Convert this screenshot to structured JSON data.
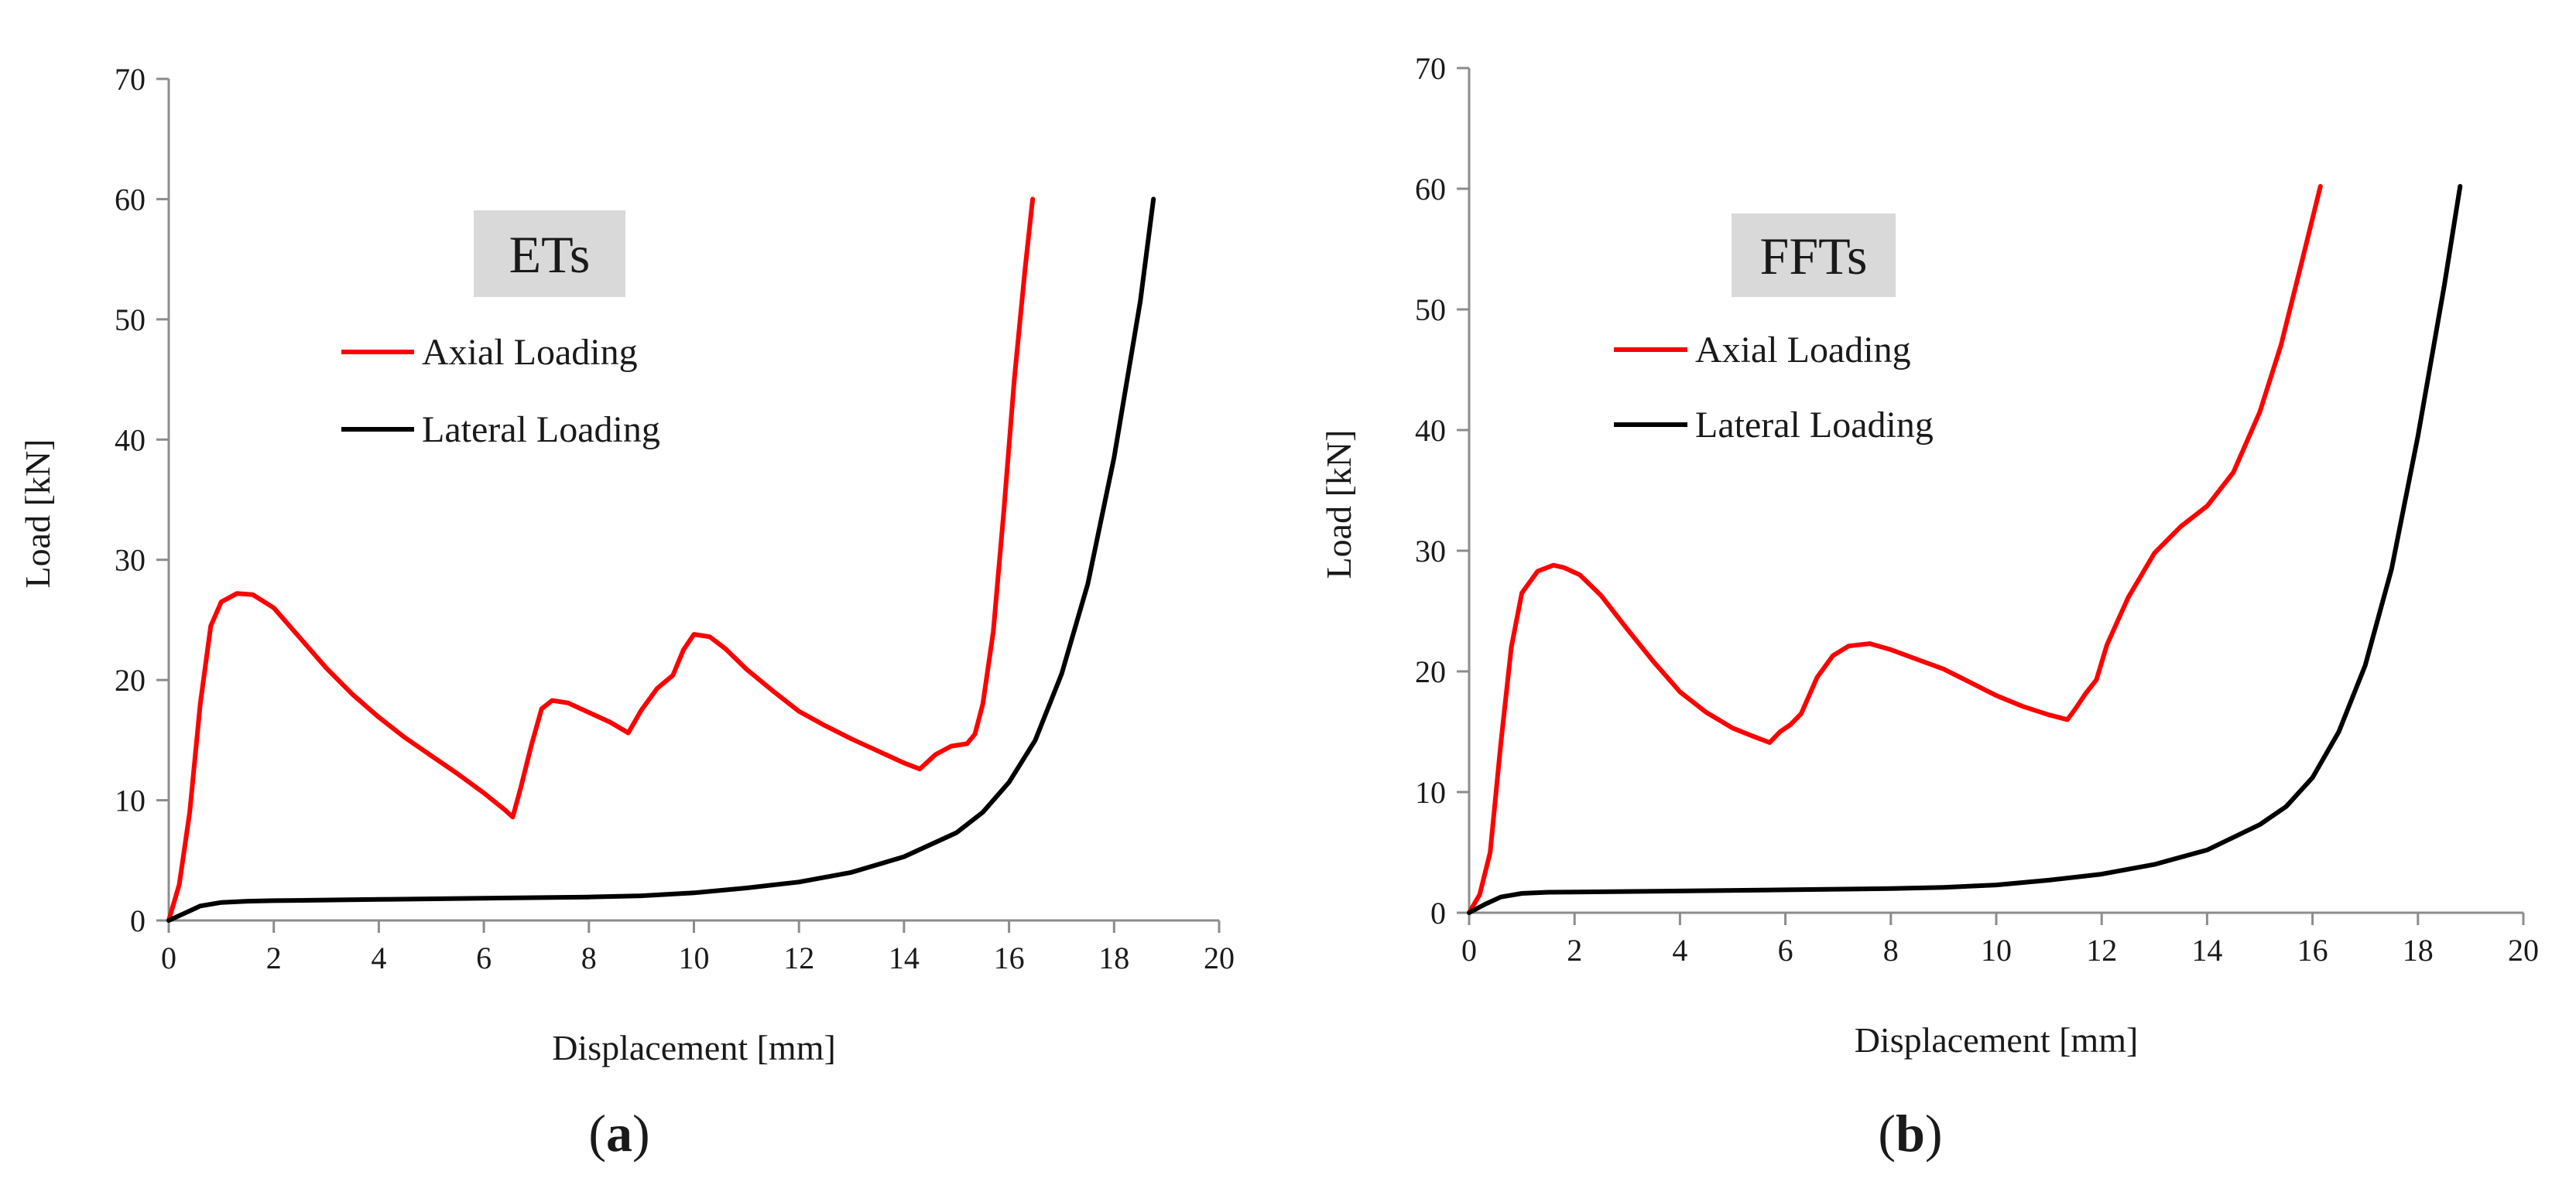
{
  "chart_data": [
    {
      "type": "line",
      "panel_label": "a",
      "caption_open": "(",
      "caption_close": ")",
      "title": "ETs",
      "xlabel": "Displacement [mm]",
      "ylabel": "Load [kN]",
      "xlim": [
        0,
        20
      ],
      "ylim": [
        0,
        70
      ],
      "xticks": [
        0,
        2,
        4,
        6,
        8,
        10,
        12,
        14,
        16,
        18,
        20
      ],
      "yticks": [
        0,
        10,
        20,
        30,
        40,
        50,
        60,
        70
      ],
      "grid": false,
      "legend_position": "upper-left, below title",
      "series": [
        {
          "name": "Axial Loading",
          "color": "#ff0000",
          "x": [
            0,
            0.2,
            0.4,
            0.6,
            0.8,
            1.0,
            1.3,
            1.6,
            2.0,
            2.5,
            3.0,
            3.5,
            4.0,
            4.5,
            5.0,
            5.5,
            6.0,
            6.4,
            6.55,
            6.7,
            6.9,
            7.1,
            7.3,
            7.6,
            8.0,
            8.4,
            8.75,
            9.0,
            9.3,
            9.6,
            9.8,
            10.0,
            10.3,
            10.6,
            11.0,
            11.5,
            12.0,
            12.5,
            13.0,
            13.5,
            14.0,
            14.3,
            14.6,
            14.9,
            15.2,
            15.35,
            15.5,
            15.7,
            15.9,
            16.1,
            16.3,
            16.45
          ],
          "y": [
            0,
            3,
            9,
            18,
            24.5,
            26.5,
            27.2,
            27.1,
            26,
            23.5,
            21,
            18.8,
            16.9,
            15.2,
            13.7,
            12.2,
            10.6,
            9.2,
            8.6,
            11,
            14.5,
            17.6,
            18.3,
            18.1,
            17.3,
            16.5,
            15.6,
            17.5,
            19.3,
            20.4,
            22.5,
            23.8,
            23.6,
            22.6,
            20.9,
            19.1,
            17.4,
            16.2,
            15.1,
            14.1,
            13.1,
            12.6,
            13.8,
            14.5,
            14.7,
            15.5,
            18,
            24,
            34,
            45,
            54,
            60
          ]
        },
        {
          "name": "Lateral Loading",
          "color": "#000000",
          "x": [
            0,
            0.3,
            0.6,
            1.0,
            1.5,
            2,
            4,
            6,
            8,
            9,
            10,
            11,
            12,
            13,
            14,
            15,
            15.5,
            16,
            16.5,
            17,
            17.5,
            18,
            18.5,
            18.75
          ],
          "y": [
            0,
            0.6,
            1.2,
            1.5,
            1.6,
            1.65,
            1.75,
            1.85,
            1.95,
            2.05,
            2.3,
            2.7,
            3.2,
            4,
            5.3,
            7.3,
            9.0,
            11.5,
            15,
            20.5,
            28,
            38.5,
            51.5,
            60
          ]
        }
      ]
    },
    {
      "type": "line",
      "panel_label": "b",
      "caption_open": "(",
      "caption_close": ")",
      "title": "FFTs",
      "xlabel": "Displacement [mm]",
      "ylabel": "Load [kN]",
      "xlim": [
        0,
        20
      ],
      "ylim": [
        0,
        70
      ],
      "xticks": [
        0,
        2,
        4,
        6,
        8,
        10,
        12,
        14,
        16,
        18,
        20
      ],
      "yticks": [
        0,
        10,
        20,
        30,
        40,
        50,
        60,
        70
      ],
      "grid": false,
      "legend_position": "upper-left, below title",
      "series": [
        {
          "name": "Axial Loading",
          "color": "#ff0000",
          "x": [
            0,
            0.2,
            0.4,
            0.6,
            0.8,
            1.0,
            1.3,
            1.6,
            1.8,
            2.1,
            2.5,
            3.0,
            3.5,
            4.0,
            4.5,
            5.0,
            5.4,
            5.7,
            5.9,
            6.1,
            6.3,
            6.6,
            6.9,
            7.2,
            7.6,
            8.0,
            8.5,
            9.0,
            9.5,
            10.0,
            10.5,
            11.0,
            11.35,
            11.5,
            11.7,
            11.9,
            12.1,
            12.5,
            13.0,
            13.5,
            14.0,
            14.5,
            15.0,
            15.4,
            15.8,
            16.15
          ],
          "y": [
            0,
            1.5,
            5,
            14,
            22,
            26.5,
            28.3,
            28.8,
            28.6,
            28,
            26.3,
            23.5,
            20.8,
            18.3,
            16.6,
            15.3,
            14.6,
            14.1,
            15,
            15.6,
            16.5,
            19.5,
            21.3,
            22.1,
            22.3,
            21.8,
            21,
            20.2,
            19.1,
            18,
            17.1,
            16.4,
            16,
            16.9,
            18.2,
            19.3,
            22.2,
            26.1,
            29.8,
            32,
            33.7,
            36.5,
            41.5,
            47,
            54,
            60.2
          ]
        },
        {
          "name": "Lateral Loading",
          "color": "#000000",
          "x": [
            0,
            0.3,
            0.6,
            1.0,
            1.5,
            2,
            4,
            6,
            8,
            9,
            10,
            11,
            12,
            13,
            14,
            15,
            15.5,
            16,
            16.5,
            17,
            17.5,
            18,
            18.5,
            18.8
          ],
          "y": [
            0,
            0.7,
            1.3,
            1.6,
            1.7,
            1.72,
            1.8,
            1.9,
            2.0,
            2.1,
            2.3,
            2.7,
            3.2,
            4.0,
            5.2,
            7.3,
            8.8,
            11.2,
            15,
            20.5,
            28.5,
            39.5,
            52,
            60.2
          ]
        }
      ]
    }
  ]
}
